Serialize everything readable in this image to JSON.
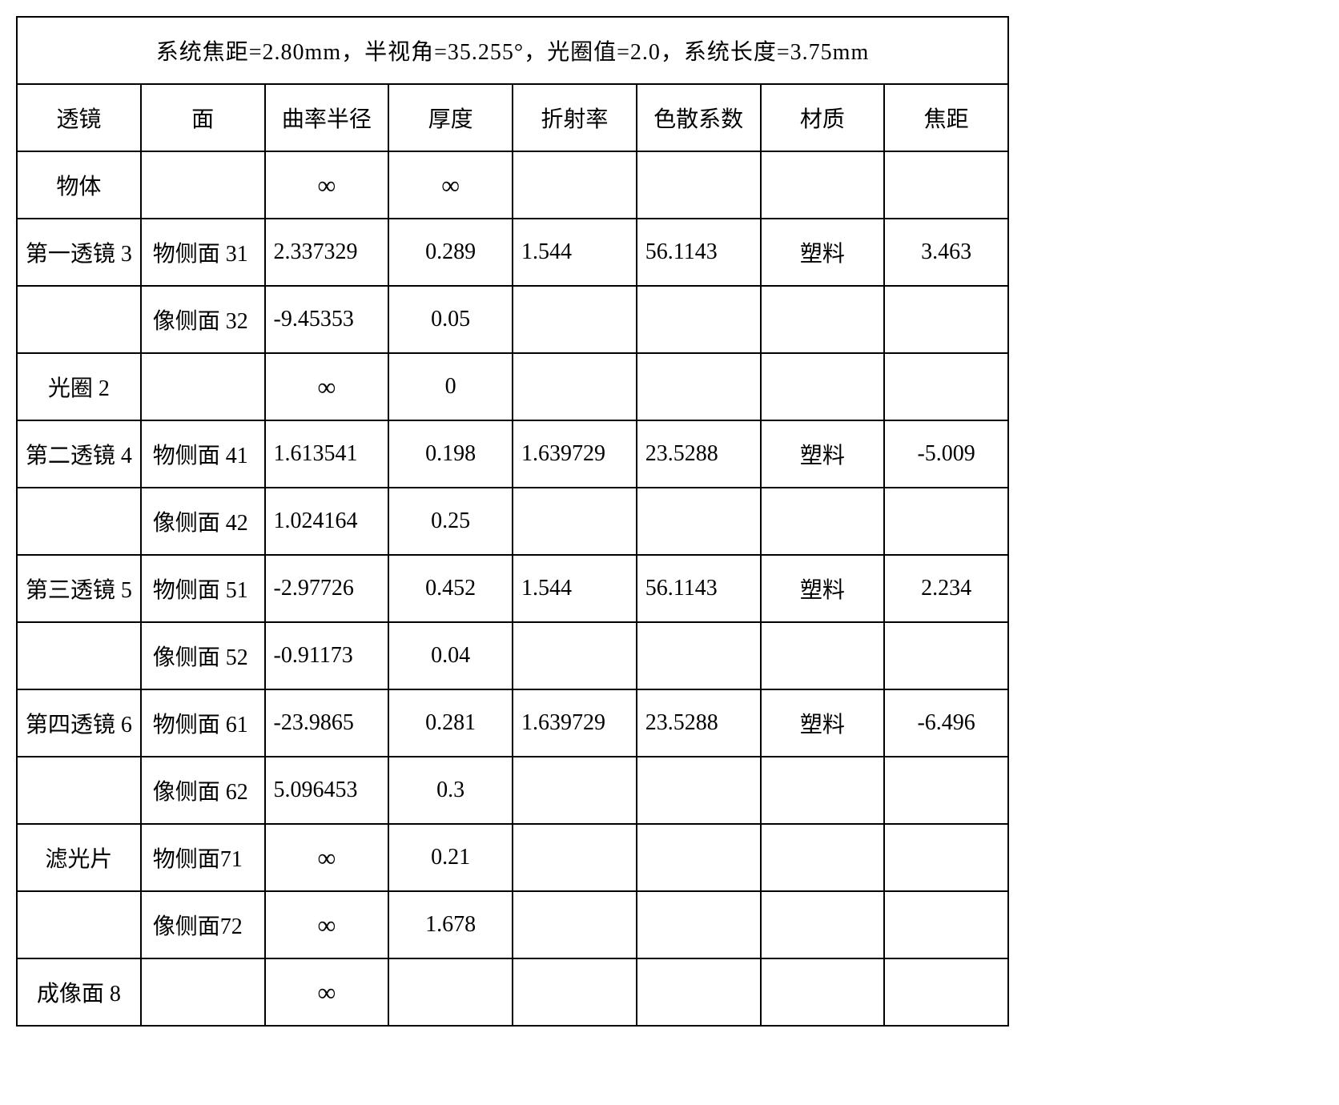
{
  "title": "系统焦距=2.80mm，半视角=35.255°，光圈值=2.0，系统长度=3.75mm",
  "headers": {
    "lens": "透镜",
    "surface": "面",
    "radius": "曲率半径",
    "thickness": "厚度",
    "index": "折射率",
    "abbe": "色散系数",
    "material": "材质",
    "focal": "焦距"
  },
  "rows": [
    {
      "lens": "物体",
      "surface": "",
      "radius": "∞",
      "thickness": "∞",
      "index": "",
      "abbe": "",
      "material": "",
      "focal": ""
    },
    {
      "lens": "第一透镜 3",
      "surface": "物侧面 31",
      "radius": "2.337329",
      "thickness": "0.289",
      "index": "1.544",
      "abbe": "56.1143",
      "material": "塑料",
      "focal": "3.463"
    },
    {
      "lens": "",
      "surface": "像侧面 32",
      "radius": "-9.45353",
      "thickness": "0.05",
      "index": "",
      "abbe": "",
      "material": "",
      "focal": ""
    },
    {
      "lens": "光圈 2",
      "surface": "",
      "radius": "∞",
      "thickness": "0",
      "index": "",
      "abbe": "",
      "material": "",
      "focal": ""
    },
    {
      "lens": "第二透镜 4",
      "surface": "物侧面 41",
      "radius": "1.613541",
      "thickness": "0.198",
      "index": "1.639729",
      "abbe": "23.5288",
      "material": "塑料",
      "focal": "-5.009"
    },
    {
      "lens": "",
      "surface": "像侧面 42",
      "radius": "1.024164",
      "thickness": "0.25",
      "index": "",
      "abbe": "",
      "material": "",
      "focal": ""
    },
    {
      "lens": "第三透镜 5",
      "surface": "物侧面 51",
      "radius": "-2.97726",
      "thickness": "0.452",
      "index": "1.544",
      "abbe": "56.1143",
      "material": "塑料",
      "focal": "2.234"
    },
    {
      "lens": "",
      "surface": "像侧面 52",
      "radius": "-0.91173",
      "thickness": "0.04",
      "index": "",
      "abbe": "",
      "material": "",
      "focal": ""
    },
    {
      "lens": "第四透镜 6",
      "surface": "物侧面 61",
      "radius": "-23.9865",
      "thickness": "0.281",
      "index": "1.639729",
      "abbe": "23.5288",
      "material": "塑料",
      "focal": "-6.496"
    },
    {
      "lens": "",
      "surface": "像侧面 62",
      "radius": "5.096453",
      "thickness": "0.3",
      "index": "",
      "abbe": "",
      "material": "",
      "focal": ""
    },
    {
      "lens": "滤光片",
      "surface": "物侧面71",
      "radius": "∞",
      "thickness": "0.21",
      "index": "",
      "abbe": "",
      "material": "",
      "focal": ""
    },
    {
      "lens": "",
      "surface": "像侧面72",
      "radius": "∞",
      "thickness": "1.678",
      "index": "",
      "abbe": "",
      "material": "",
      "focal": ""
    },
    {
      "lens": "成像面 8",
      "surface": "",
      "radius": "∞",
      "thickness": "",
      "index": "",
      "abbe": "",
      "material": "",
      "focal": ""
    }
  ]
}
